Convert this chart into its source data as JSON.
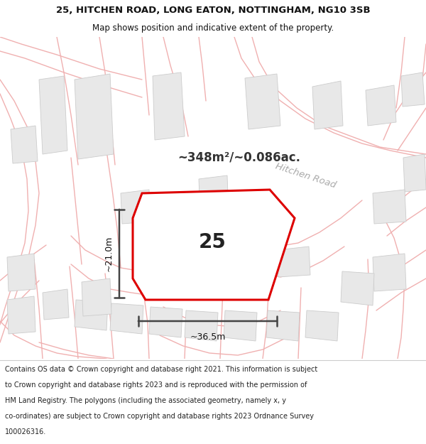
{
  "title_line1": "25, HITCHEN ROAD, LONG EATON, NOTTINGHAM, NG10 3SB",
  "title_line2": "Map shows position and indicative extent of the property.",
  "area_text": "~348m²/~0.086ac.",
  "label_25": "25",
  "dim_width": "~36.5m",
  "dim_height": "~21.0m",
  "road_label": "Hitchen Road",
  "footer_lines": [
    "Contains OS data © Crown copyright and database right 2021. This information is subject",
    "to Crown copyright and database rights 2023 and is reproduced with the permission of",
    "HM Land Registry. The polygons (including the associated geometry, namely x, y",
    "co-ordinates) are subject to Crown copyright and database rights 2023 Ordnance Survey",
    "100026316."
  ],
  "bg_map_color": "#ffffff",
  "plot_fill_color": "#ffffff",
  "plot_edge_color": "#dd0000",
  "road_line_color": "#f0b0b0",
  "building_fill": "#e8e8e8",
  "building_edge": "#cccccc",
  "dim_line_color": "#444444",
  "footer_bg": "#ffffff",
  "title_bg": "#ffffff",
  "area_text_color": "#333333",
  "road_label_color": "#aaaaaa",
  "label_color": "#222222"
}
